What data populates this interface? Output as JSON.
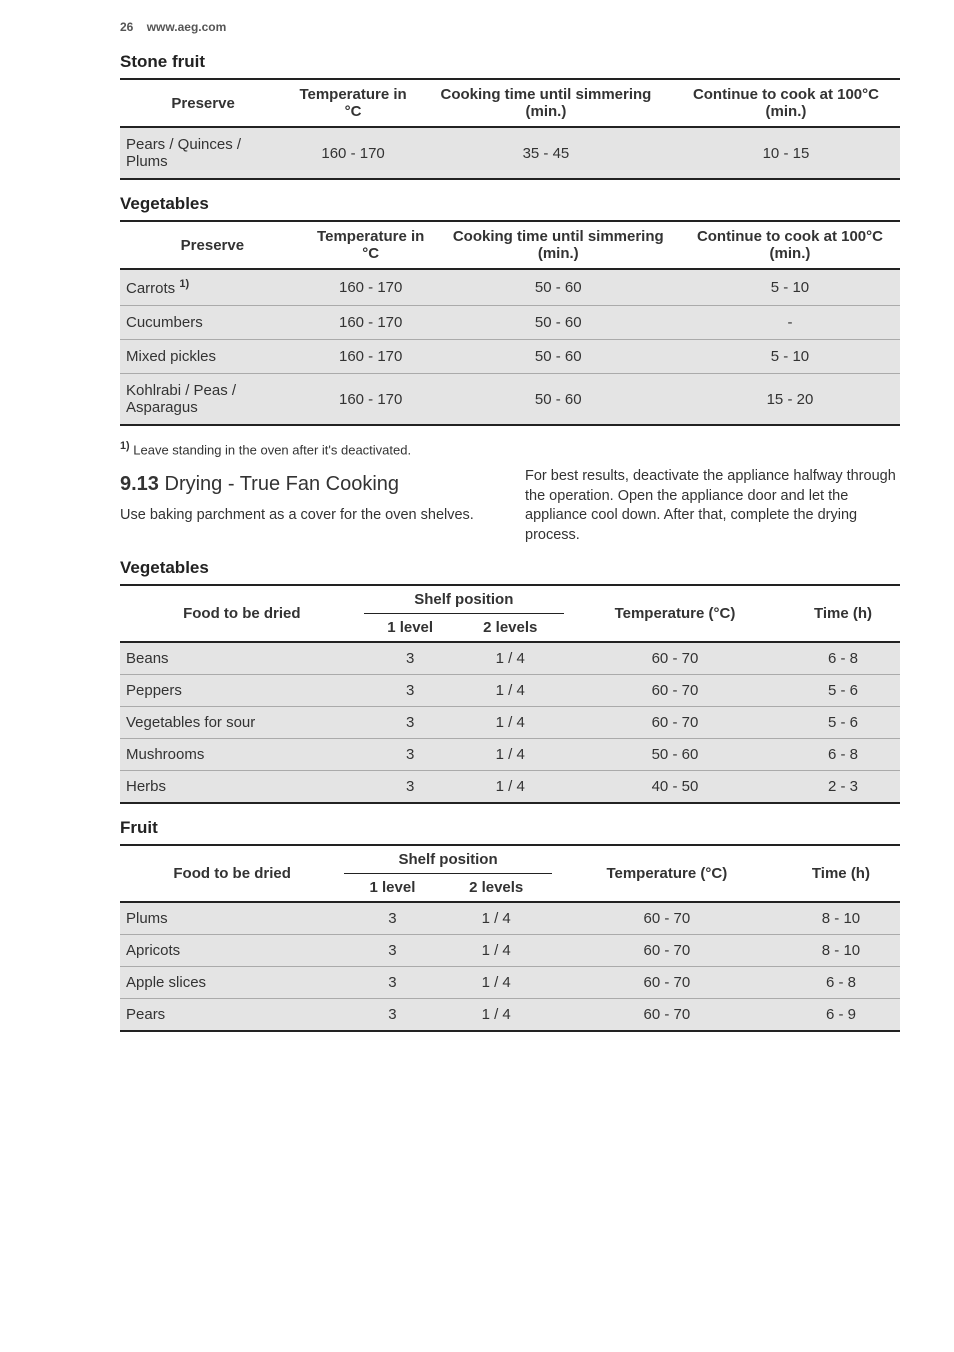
{
  "header": {
    "page_num": "26",
    "url": "www.aeg.com"
  },
  "stone_fruit": {
    "title": "Stone fruit",
    "columns": [
      "Preserve",
      "Temperature in °C",
      "Cooking time until simmering (min.)",
      "Continue to cook at 100°C (min.)"
    ],
    "rows": [
      {
        "c": [
          "Pears / Quinces / Plums",
          "160 - 170",
          "35 - 45",
          "10 - 15"
        ],
        "shade": true
      }
    ]
  },
  "vegetables_preserve": {
    "title": "Vegetables",
    "columns": [
      "Preserve",
      "Temperature in °C",
      "Cooking time until simmering (min.)",
      "Continue to cook at 100°C (min.)"
    ],
    "rows": [
      {
        "c": [
          "Carrots ",
          "160 - 170",
          "50 - 60",
          "5 - 10"
        ],
        "shade": true,
        "sup": "1)"
      },
      {
        "c": [
          "Cucumbers",
          "160 - 170",
          "50 - 60",
          "-"
        ],
        "shade": true
      },
      {
        "c": [
          "Mixed pickles",
          "160 - 170",
          "50 - 60",
          "5 - 10"
        ],
        "shade": true
      },
      {
        "c": [
          "Kohlrabi / Peas / Asparagus",
          "160 - 170",
          "50 - 60",
          "15 - 20"
        ],
        "shade": true
      }
    ],
    "footnote_mark": "1)",
    "footnote_text": " Leave standing in the oven after it's deactivated."
  },
  "section913": {
    "num": "9.13",
    "title": " Drying - True Fan Cooking",
    "left_para": "Use baking parchment as a cover for the oven shelves.",
    "right_para": "For best results, deactivate the appliance halfway through the operation. Open the appliance door and let the appliance cool down. After that, complete the drying process."
  },
  "drying_vegetables": {
    "title": "Vegetables",
    "head": {
      "food": "Food to be dried",
      "shelf": "Shelf position",
      "s1": "1 level",
      "s2": "2 levels",
      "temp": "Temperature (°C)",
      "time": "Time (h)"
    },
    "rows": [
      {
        "c": [
          "Beans",
          "3",
          "1 / 4",
          "60 - 70",
          "6 - 8"
        ],
        "shade": true
      },
      {
        "c": [
          "Peppers",
          "3",
          "1 / 4",
          "60 - 70",
          "5 - 6"
        ],
        "shade": true
      },
      {
        "c": [
          "Vegetables for sour",
          "3",
          "1 / 4",
          "60 - 70",
          "5 - 6"
        ],
        "shade": true
      },
      {
        "c": [
          "Mushrooms",
          "3",
          "1 / 4",
          "50 - 60",
          "6 - 8"
        ],
        "shade": true
      },
      {
        "c": [
          "Herbs",
          "3",
          "1 / 4",
          "40 - 50",
          "2 - 3"
        ],
        "shade": true
      }
    ]
  },
  "drying_fruit": {
    "title": "Fruit",
    "head": {
      "food": "Food to be dried",
      "shelf": "Shelf position",
      "s1": "1 level",
      "s2": "2 levels",
      "temp": "Temperature (°C)",
      "time": "Time (h)"
    },
    "rows": [
      {
        "c": [
          "Plums",
          "3",
          "1 / 4",
          "60 - 70",
          "8 - 10"
        ],
        "shade": true
      },
      {
        "c": [
          "Apricots",
          "3",
          "1 / 4",
          "60 - 70",
          "8 - 10"
        ],
        "shade": true
      },
      {
        "c": [
          "Apple slices",
          "3",
          "1 / 4",
          "60 - 70",
          "6 - 8"
        ],
        "shade": true
      },
      {
        "c": [
          "Pears",
          "3",
          "1 / 4",
          "60 - 70",
          "6 - 9"
        ],
        "shade": true
      }
    ]
  }
}
